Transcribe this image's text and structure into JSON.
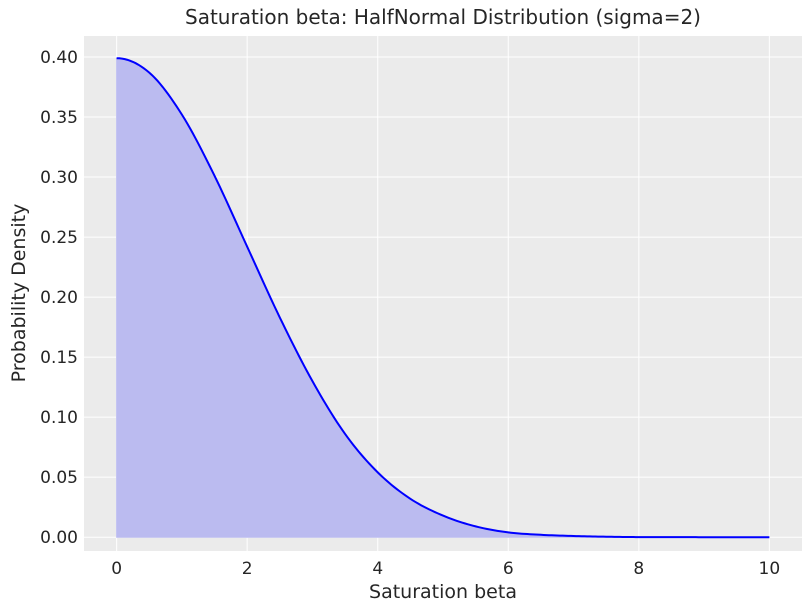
{
  "chart_data": {
    "type": "area",
    "title": "Saturation beta: HalfNormal Distribution (sigma=2)",
    "xlabel": "Saturation beta",
    "ylabel": "Probability Density",
    "xlim": [
      -0.5,
      10.5
    ],
    "ylim": [
      -0.0115,
      0.4175
    ],
    "xticks": [
      0,
      2,
      4,
      6,
      8,
      10
    ],
    "xtick_labels": [
      "0",
      "2",
      "4",
      "6",
      "8",
      "10"
    ],
    "yticks": [
      0.0,
      0.05,
      0.1,
      0.15,
      0.2,
      0.25,
      0.3,
      0.35,
      0.4
    ],
    "ytick_labels": [
      "0.00",
      "0.05",
      "0.10",
      "0.15",
      "0.20",
      "0.25",
      "0.30",
      "0.35",
      "0.40"
    ],
    "grid": true,
    "x": [
      0,
      0.5,
      1,
      1.5,
      2,
      2.5,
      3,
      3.5,
      4,
      4.5,
      5,
      5.5,
      6,
      6.5,
      7,
      7.5,
      8,
      8.5,
      9,
      9.5,
      10
    ],
    "series": [
      {
        "values": [
          0.399,
          0.387,
          0.352,
          0.301,
          0.242,
          0.183,
          0.13,
          0.086,
          0.054,
          0.032,
          0.018,
          0.009,
          0.004,
          0.002,
          0.001,
          0.0004,
          0.0001,
          0.0001,
          0.0,
          0.0,
          0.0
        ]
      }
    ],
    "colors": {
      "line": "#0000ff",
      "fill": "#bbbbf0",
      "background": "#ebebeb",
      "grid": "#ffffff",
      "text": "#262626"
    }
  }
}
